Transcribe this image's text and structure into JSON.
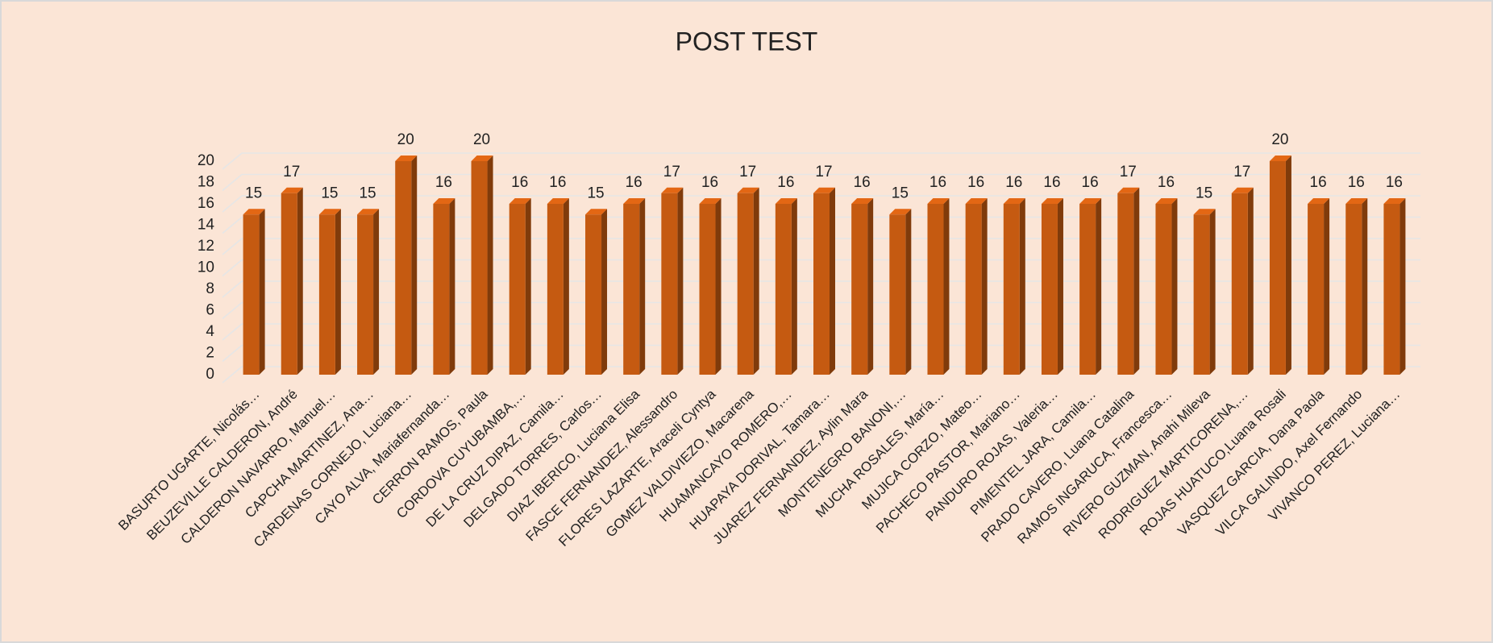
{
  "chart_data": {
    "type": "bar",
    "title": "POST TEST",
    "categories": [
      "BASURTO UGARTE, Nicolás…",
      "BEUZEVILLE CALDERON, André",
      "CALDERON NAVARRO, Manuel…",
      "CAPCHA MARTINEZ, Ana…",
      "CARDENAS CORNEJO, Luciana…",
      "CAYO ALVA, Mariafernanda…",
      "CERRON RAMOS, Paula",
      "CORDOVA CUYUBAMBA,…",
      "DE LA CRUZ DIPAZ, Camila…",
      "DELGADO TORRES, Carlos…",
      "DIAZ IBERICO, Luciana Elisa",
      "FASCE FERNANDEZ, Alessandro",
      "FLORES LAZARTE, Araceli Cyntya",
      "GOMEZ VALDIVIEZO, Macarena",
      "HUAMANCAYO ROMERO,…",
      "HUAPAYA DORIVAL, Tamara…",
      "JUAREZ FERNANDEZ, Aylin Mara",
      "MONTENEGRO BANONI,…",
      "MUCHA ROSALES, María…",
      "MUJICA CORZO, Mateo…",
      "PACHECO PASTOR, Mariano…",
      "PANDURO ROJAS, Valeria…",
      "PIMENTEL JARA, Camila…",
      "PRADO CAVERO, Luana Catalina",
      "RAMOS INGARUCA, Francesca…",
      "RIVERO GUZMAN, Anahi Mileva",
      "RODRIGUEZ MARTICORENA,…",
      "ROJAS HUATUCO,Luana Rosali",
      "VASQUEZ GARCIA, Dana Paola",
      "VILCA GALINDO, Axel Fernando",
      "VIVANCO PEREZ, Luciana…"
    ],
    "values": [
      15,
      17,
      15,
      15,
      20,
      16,
      20,
      16,
      16,
      15,
      16,
      17,
      16,
      17,
      16,
      17,
      16,
      15,
      16,
      16,
      16,
      16,
      16,
      17,
      16,
      15,
      17,
      20,
      16,
      16,
      16
    ],
    "color": "#c55a11",
    "ylim": [
      0,
      20
    ],
    "yticks": [
      0,
      2,
      4,
      6,
      8,
      10,
      12,
      14,
      16,
      18,
      20
    ],
    "grid": true
  }
}
